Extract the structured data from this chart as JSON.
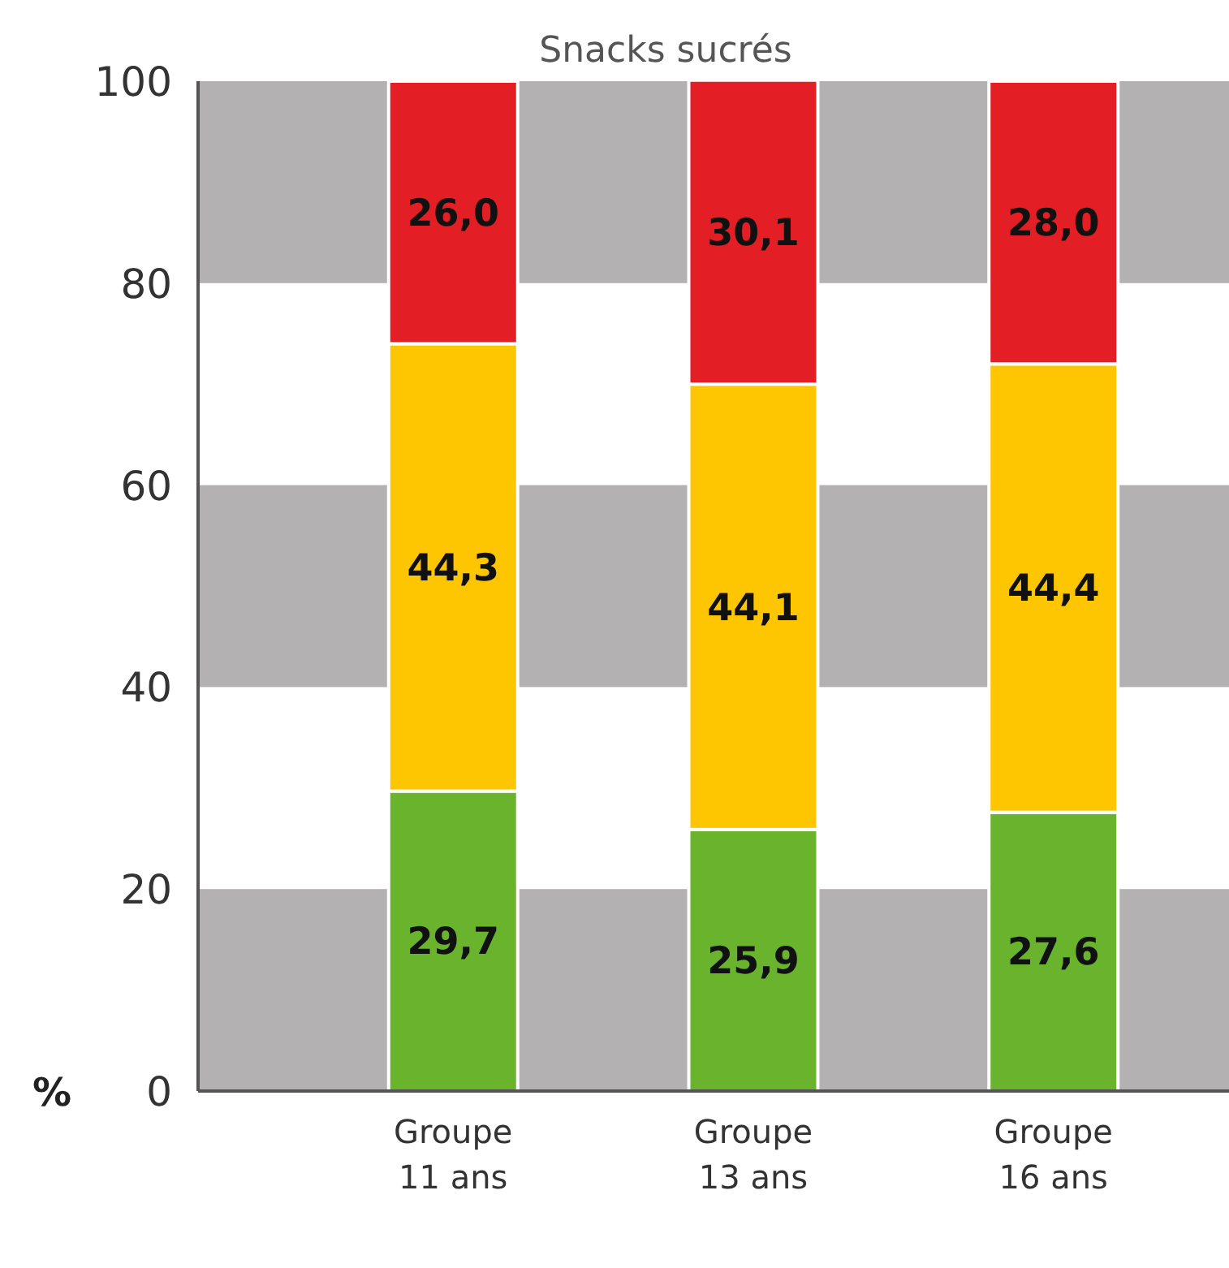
{
  "chart_data": {
    "type": "bar",
    "title": "Snacks sucrés",
    "ylabel": "%",
    "categories": [
      "Groupe 11 ans",
      "Groupe 13 ans",
      "Groupe 16 ans"
    ],
    "stacked": true,
    "series": [
      {
        "color": "#6ab42d",
        "values": [
          29.7,
          25.9,
          27.6
        ],
        "value_labels": [
          "29,7",
          "25,9",
          "27,6"
        ]
      },
      {
        "color": "#fec600",
        "values": [
          44.3,
          44.1,
          44.4
        ],
        "value_labels": [
          "44,3",
          "44,1",
          "44,4"
        ]
      },
      {
        "color": "#e41e25",
        "values": [
          26.0,
          30.1,
          28.0
        ],
        "value_labels": [
          "26,0",
          "30,1",
          "28,0"
        ]
      }
    ],
    "ylim": [
      0,
      100
    ],
    "yticks": [
      0,
      20,
      40,
      60,
      80,
      100
    ],
    "bands": [
      {
        "axis": "y",
        "from": 0,
        "to": 20,
        "color": "#b3b1b2"
      },
      {
        "axis": "y",
        "from": 40,
        "to": 60,
        "color": "#b3b1b2"
      },
      {
        "axis": "y",
        "from": 80,
        "to": 100,
        "color": "#b3b1b2"
      }
    ]
  }
}
